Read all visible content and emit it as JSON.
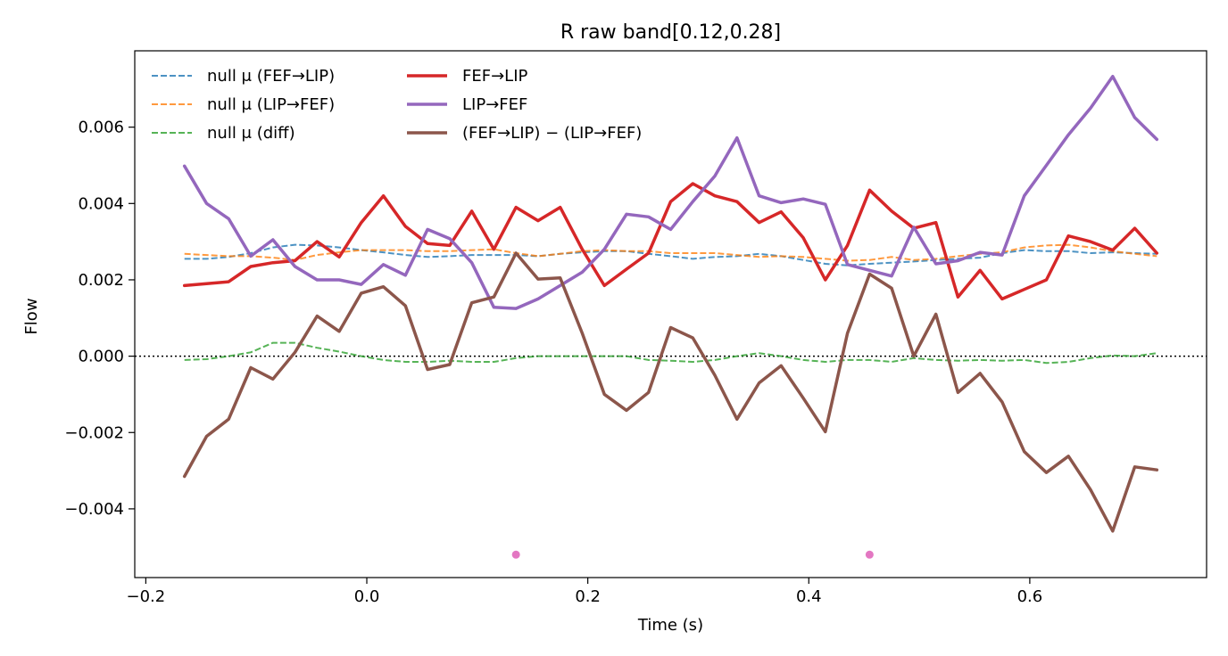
{
  "chart_data": {
    "type": "line",
    "title": "R raw   band[0.12,0.28]",
    "xlabel": "Time (s)",
    "ylabel": "Flow",
    "xlim": [
      -0.21,
      0.76
    ],
    "ylim": [
      -0.0058,
      0.008
    ],
    "x_ticks": [
      -0.2,
      0.0,
      0.2,
      0.4,
      0.6
    ],
    "x_tick_labels": [
      "−0.2",
      "0.0",
      "0.2",
      "0.4",
      "0.6"
    ],
    "y_ticks": [
      -0.004,
      -0.002,
      0.0,
      0.002,
      0.004,
      0.006
    ],
    "y_tick_labels": [
      "−0.004",
      "−0.002",
      "0.000",
      "0.002",
      "0.004",
      "0.006"
    ],
    "grid": false,
    "legend_position": "top-left",
    "zero_line": 0.0,
    "x": [
      -0.165,
      -0.145,
      -0.125,
      -0.105,
      -0.085,
      -0.065,
      -0.045,
      -0.025,
      -0.005,
      0.015,
      0.035,
      0.055,
      0.075,
      0.095,
      0.115,
      0.135,
      0.155,
      0.175,
      0.195,
      0.215,
      0.235,
      0.255,
      0.275,
      0.295,
      0.315,
      0.335,
      0.355,
      0.375,
      0.395,
      0.415,
      0.435,
      0.455,
      0.475,
      0.495,
      0.515,
      0.535,
      0.555,
      0.575,
      0.595,
      0.615,
      0.635,
      0.655,
      0.675,
      0.695,
      0.715
    ],
    "series": [
      {
        "name": "null μ (FEF→LIP)",
        "style": "dashed",
        "color": "#1f77b4",
        "values": [
          0.00255,
          0.00255,
          0.0026,
          0.0027,
          0.00285,
          0.00292,
          0.0029,
          0.00285,
          0.00278,
          0.00272,
          0.00265,
          0.0026,
          0.00262,
          0.00265,
          0.00265,
          0.00265,
          0.00262,
          0.00268,
          0.00272,
          0.00275,
          0.00275,
          0.00268,
          0.00262,
          0.00255,
          0.0026,
          0.00262,
          0.00268,
          0.00262,
          0.00252,
          0.00242,
          0.00238,
          0.00242,
          0.00245,
          0.00248,
          0.00252,
          0.00255,
          0.00258,
          0.0027,
          0.00278,
          0.00275,
          0.00275,
          0.0027,
          0.00272,
          0.0027,
          0.00268
        ]
      },
      {
        "name": "null μ (LIP→FEF)",
        "style": "dashed",
        "color": "#ff7f0e",
        "values": [
          0.00268,
          0.00265,
          0.00262,
          0.00262,
          0.00258,
          0.00252,
          0.00265,
          0.00272,
          0.00278,
          0.00278,
          0.00278,
          0.00275,
          0.00275,
          0.00278,
          0.0028,
          0.0027,
          0.00262,
          0.00268,
          0.00275,
          0.00278,
          0.00275,
          0.00275,
          0.0027,
          0.0027,
          0.0027,
          0.00265,
          0.0026,
          0.00262,
          0.0026,
          0.00255,
          0.0025,
          0.00252,
          0.0026,
          0.00252,
          0.00255,
          0.00262,
          0.00268,
          0.00272,
          0.00285,
          0.0029,
          0.00292,
          0.00285,
          0.00275,
          0.00268,
          0.00262
        ]
      },
      {
        "name": "null μ (diff)",
        "style": "dashed",
        "color": "#2ca02c",
        "values": [
          -0.0001,
          -8e-05,
          0.0,
          0.0001,
          0.00035,
          0.00035,
          0.00022,
          0.00012,
          0.0,
          -0.0001,
          -0.00015,
          -0.00015,
          -0.00012,
          -0.00015,
          -0.00015,
          -5e-05,
          0.0,
          0.0,
          0.0,
          0.0,
          0.0,
          -0.0001,
          -0.00012,
          -0.00015,
          -0.0001,
          0.0,
          8e-05,
          0.0,
          -0.0001,
          -0.00015,
          -0.0001,
          -0.0001,
          -0.00015,
          -5e-05,
          -0.0001,
          -0.00012,
          -0.0001,
          -0.00012,
          -0.0001,
          -0.00018,
          -0.00015,
          -5e-05,
          2e-05,
          0.0,
          8e-05
        ]
      },
      {
        "name": "FEF→LIP",
        "style": "solid",
        "color": "#d62728",
        "values": [
          0.00185,
          0.0019,
          0.00195,
          0.00235,
          0.00245,
          0.0025,
          0.003,
          0.0026,
          0.0035,
          0.0042,
          0.0034,
          0.00295,
          0.0029,
          0.0038,
          0.0028,
          0.0039,
          0.00355,
          0.0039,
          0.0028,
          0.00185,
          0.00228,
          0.0027,
          0.00405,
          0.00452,
          0.0042,
          0.00405,
          0.0035,
          0.00378,
          0.0031,
          0.002,
          0.0029,
          0.00435,
          0.0038,
          0.00335,
          0.0035,
          0.00155,
          0.00225,
          0.0015,
          0.00175,
          0.002,
          0.00315,
          0.003,
          0.00278,
          0.00335,
          0.0027
        ]
      },
      {
        "name": "LIP→FEF",
        "style": "solid",
        "color": "#9467bd",
        "values": [
          0.00498,
          0.004,
          0.0036,
          0.00262,
          0.00305,
          0.00235,
          0.002,
          0.002,
          0.00188,
          0.0024,
          0.00212,
          0.00332,
          0.00308,
          0.00245,
          0.00128,
          0.00125,
          0.0015,
          0.00185,
          0.0022,
          0.0028,
          0.00372,
          0.00365,
          0.00332,
          0.00405,
          0.00472,
          0.00572,
          0.0042,
          0.00402,
          0.00412,
          0.00398,
          0.0024,
          0.00225,
          0.0021,
          0.00338,
          0.00242,
          0.0025,
          0.00272,
          0.00265,
          0.0042,
          0.005,
          0.0058,
          0.0065,
          0.00733,
          0.00625,
          0.00568
        ]
      },
      {
        "name": "(FEF→LIP) − (LIP→FEF)",
        "style": "solid",
        "color": "#8c564b",
        "values": [
          -0.00315,
          -0.0021,
          -0.00165,
          -0.0003,
          -0.0006,
          0.0001,
          0.00105,
          0.00065,
          0.00165,
          0.00182,
          0.00132,
          -0.00035,
          -0.00022,
          0.0014,
          0.00155,
          0.0027,
          0.00202,
          0.00205,
          0.0006,
          -0.001,
          -0.00142,
          -0.00095,
          0.00075,
          0.00048,
          -0.0005,
          -0.00165,
          -0.0007,
          -0.00025,
          -0.0011,
          -0.00198,
          0.0006,
          0.00215,
          0.00178,
          0.0,
          0.0011,
          -0.00095,
          -0.00045,
          -0.0012,
          -0.0025,
          -0.00305,
          -0.00262,
          -0.0035,
          -0.00458,
          -0.0029,
          -0.00298
        ]
      }
    ],
    "markers": {
      "color": "#e377c2",
      "points": [
        {
          "x": 0.135,
          "y": -0.0052
        },
        {
          "x": 0.455,
          "y": -0.0052
        }
      ]
    }
  }
}
